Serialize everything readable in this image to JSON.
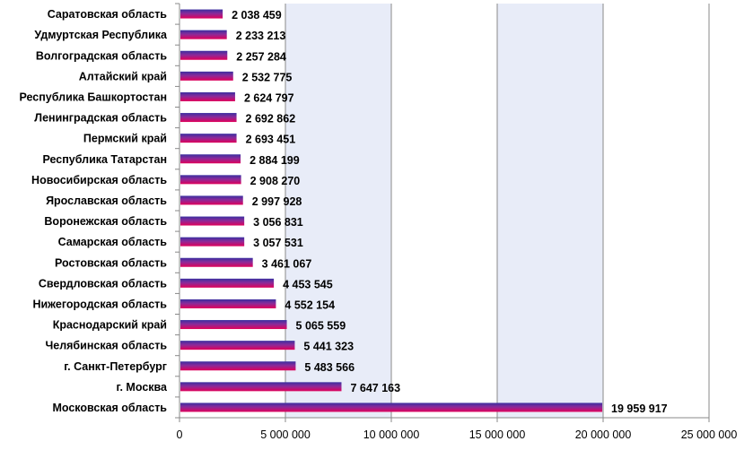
{
  "chart_data": {
    "type": "bar",
    "orientation": "horizontal",
    "title": "",
    "xlabel": "",
    "ylabel": "",
    "categories": [
      "Саратовская область",
      "Удмуртская Республика",
      "Волгоградская область",
      "Алтайский край",
      "Республика Башкортостан",
      "Ленинградская область",
      "Пермский край",
      "Республика Татарстан",
      "Новосибирская область",
      "Ярославская область",
      "Воронежская область",
      "Самарская область",
      "Ростовская область",
      "Свердловская область",
      "Нижегородская область",
      "Краснодарский край",
      "Челябинская область",
      "г. Санкт-Петербург",
      "г. Москва",
      "Московская область"
    ],
    "values": [
      2038459,
      2233213,
      2257284,
      2532775,
      2624797,
      2692862,
      2693451,
      2884199,
      2908270,
      2997928,
      3056831,
      3057531,
      3461067,
      4453545,
      4552154,
      5065559,
      5441323,
      5483566,
      7647163,
      19959917
    ],
    "value_labels": [
      "2 038 459",
      "2 233 213",
      "2 257 284",
      "2 532 775",
      "2 624 797",
      "2 692 862",
      "2 693 451",
      "2 884 199",
      "2 908 270",
      "2 997 928",
      "3 056 831",
      "3 057 531",
      "3 461 067",
      "4 453 545",
      "4 552 154",
      "5 065 559",
      "5 441 323",
      "5 483 566",
      "7 647 163",
      "19 959 917"
    ],
    "xlim": [
      0,
      25000000
    ],
    "x_ticks": [
      0,
      5000000,
      10000000,
      15000000,
      20000000,
      25000000
    ],
    "x_tick_labels": [
      "0",
      "5 000 000",
      "10 000 000",
      "15 000 000",
      "20 000 000",
      "25 000 000"
    ],
    "grid": "vertical",
    "legend": "none",
    "colors": {
      "bar_top": "#3a2fa0",
      "bar_bottom": "#e0005a",
      "plot_stripe": "#e8ecf8",
      "grid": "#8a8a8a"
    }
  }
}
